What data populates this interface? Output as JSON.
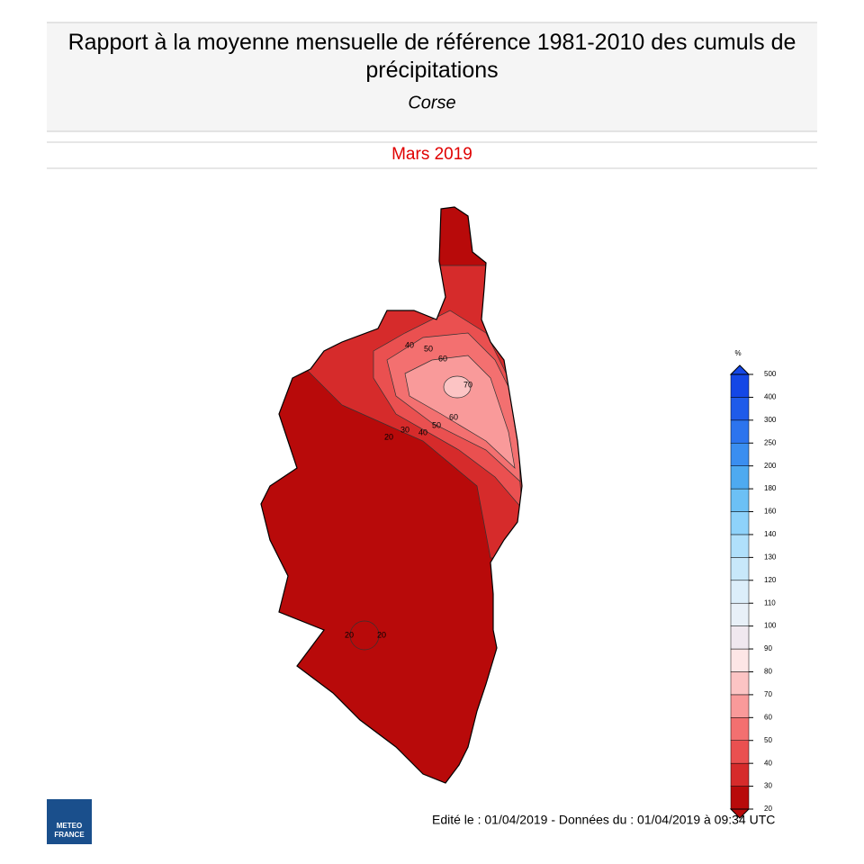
{
  "header": {
    "title": "Rapport à la moyenne mensuelle de référence 1981-2010 des cumuls de précipitations",
    "region": "Corse",
    "period": "Mars 2019"
  },
  "map": {
    "contour_labels": [
      40,
      50,
      60,
      70,
      60,
      50,
      40,
      30,
      20,
      20,
      20
    ]
  },
  "legend": {
    "unit": "%",
    "ticks": [
      20,
      30,
      40,
      50,
      60,
      70,
      80,
      90,
      100,
      110,
      120,
      130,
      140,
      160,
      180,
      200,
      250,
      300,
      400,
      500
    ],
    "colors": [
      "#b80a0a",
      "#d62b2b",
      "#ea5050",
      "#f37070",
      "#f99a9a",
      "#fcc4c4",
      "#fde6e6",
      "#f0e8ef",
      "#e8f0f8",
      "#dceefa",
      "#c8e8fa",
      "#b0e0fb",
      "#8ed2fa",
      "#6cc0f5",
      "#4eaaf0",
      "#3a8ef0",
      "#2c74ee",
      "#1f5bea",
      "#1447e6"
    ],
    "under_color": "#b80a0a",
    "over_color": "#1447e6"
  },
  "logo": {
    "line1": "METEO",
    "line2": "FRANCE"
  },
  "footer": "Edité le : 01/04/2019 - Données du : 01/04/2019 à 09:34 UTC"
}
